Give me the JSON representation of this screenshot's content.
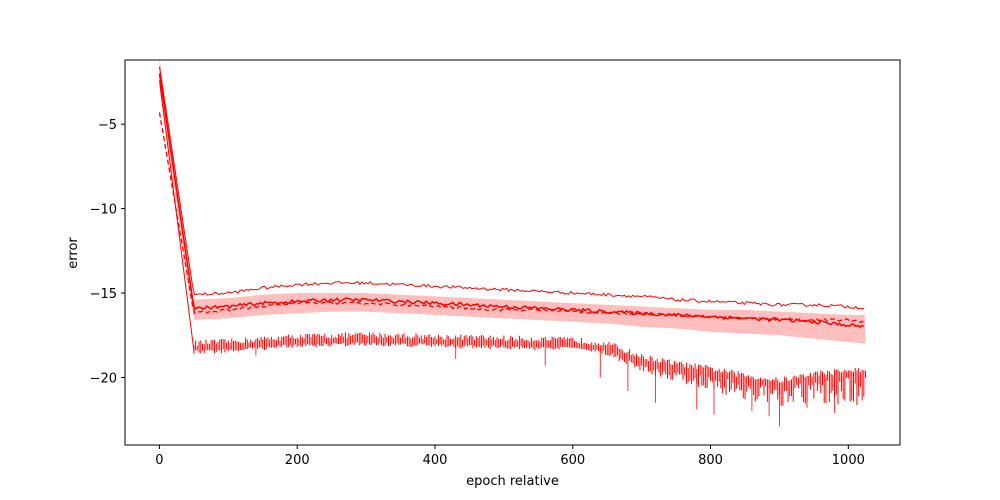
{
  "chart_data": {
    "type": "line",
    "title": "",
    "xlabel": "epoch relative",
    "ylabel": "error",
    "xlim": [
      -50,
      1075
    ],
    "ylim": [
      -24,
      -1.2
    ],
    "xticks": [
      0,
      200,
      400,
      600,
      800,
      1000
    ],
    "yticks": [
      -5,
      -10,
      -15,
      -20
    ],
    "xtick_labels": [
      "0",
      "200",
      "400",
      "600",
      "800",
      "1000"
    ],
    "ytick_labels": [
      "−5",
      "−10",
      "−15",
      "−20"
    ],
    "grid": false,
    "legend": "none",
    "colors": {
      "line": "#ff0000",
      "band": "#ffb3b3"
    },
    "series": [
      {
        "role": "mean",
        "style": "solid",
        "x": [
          0,
          50,
          100,
          150,
          200,
          250,
          300,
          350,
          400,
          450,
          500,
          550,
          600,
          650,
          700,
          750,
          800,
          850,
          900,
          950,
          1000,
          1025
        ],
        "y": [
          -2.0,
          -15.9,
          -15.8,
          -15.6,
          -15.5,
          -15.4,
          -15.4,
          -15.5,
          -15.6,
          -15.7,
          -15.8,
          -15.9,
          -16.0,
          -16.1,
          -16.2,
          -16.3,
          -16.4,
          -16.5,
          -16.6,
          -16.7,
          -16.9,
          -17.0
        ]
      },
      {
        "role": "median",
        "style": "dashed",
        "x": [
          0,
          50,
          100,
          150,
          200,
          250,
          300,
          350,
          400,
          450,
          500,
          550,
          600,
          650,
          700,
          750,
          800,
          850,
          900,
          950,
          1000,
          1025
        ],
        "y": [
          -4.3,
          -16.2,
          -16.0,
          -15.8,
          -15.6,
          -15.6,
          -15.6,
          -15.7,
          -15.8,
          -15.9,
          -16.0,
          -16.0,
          -16.1,
          -16.2,
          -16.2,
          -16.3,
          -16.4,
          -16.5,
          -16.5,
          -16.6,
          -16.6,
          -16.7
        ]
      },
      {
        "role": "max",
        "style": "solid",
        "x": [
          0,
          50,
          100,
          150,
          200,
          250,
          300,
          350,
          400,
          450,
          500,
          550,
          600,
          650,
          700,
          750,
          800,
          850,
          900,
          950,
          1000,
          1025
        ],
        "y": [
          -1.6,
          -15.1,
          -15.0,
          -14.7,
          -14.5,
          -14.4,
          -14.4,
          -14.5,
          -14.6,
          -14.7,
          -14.8,
          -14.9,
          -15.0,
          -15.1,
          -15.2,
          -15.4,
          -15.5,
          -15.6,
          -15.7,
          -15.7,
          -15.8,
          -15.9
        ]
      },
      {
        "role": "band_upper",
        "style": "fill",
        "x": [
          0,
          50,
          100,
          150,
          200,
          250,
          300,
          350,
          400,
          450,
          500,
          550,
          600,
          650,
          700,
          750,
          800,
          850,
          900,
          950,
          1000,
          1025
        ],
        "y": [
          -1.0,
          -15.4,
          -15.3,
          -15.1,
          -15.0,
          -15.0,
          -15.0,
          -15.1,
          -15.2,
          -15.3,
          -15.4,
          -15.5,
          -15.6,
          -15.7,
          -15.8,
          -15.9,
          -16.0,
          -16.0,
          -16.1,
          -16.2,
          -16.3,
          -16.3
        ]
      },
      {
        "role": "band_lower",
        "style": "fill",
        "x": [
          0,
          50,
          100,
          150,
          200,
          250,
          300,
          350,
          400,
          450,
          500,
          550,
          600,
          650,
          700,
          750,
          800,
          850,
          900,
          950,
          1000,
          1025
        ],
        "y": [
          -2.9,
          -16.6,
          -16.5,
          -16.3,
          -16.2,
          -16.1,
          -16.1,
          -16.2,
          -16.3,
          -16.4,
          -16.5,
          -16.6,
          -16.7,
          -16.8,
          -17.0,
          -17.1,
          -17.3,
          -17.4,
          -17.5,
          -17.7,
          -17.9,
          -18.0
        ]
      },
      {
        "role": "min",
        "style": "spikes",
        "x": [
          0,
          50,
          100,
          200,
          300,
          400,
          500,
          600,
          650,
          700,
          750,
          800,
          850,
          900,
          950,
          1000
        ],
        "y": [
          -2.4,
          -18.4,
          -18.3,
          -18.0,
          -17.9,
          -18.0,
          -18.1,
          -18.2,
          -18.4,
          -19.2,
          -19.6,
          -19.9,
          -20.3,
          -20.6,
          -20.2,
          -20.0
        ],
        "spike_extremes": [
          {
            "x": 140,
            "y": -18.7
          },
          {
            "x": 430,
            "y": -18.9
          },
          {
            "x": 560,
            "y": -19.3
          },
          {
            "x": 640,
            "y": -20.0
          },
          {
            "x": 680,
            "y": -20.8
          },
          {
            "x": 720,
            "y": -21.5
          },
          {
            "x": 780,
            "y": -21.9
          },
          {
            "x": 805,
            "y": -22.2
          },
          {
            "x": 860,
            "y": -22.0
          },
          {
            "x": 885,
            "y": -22.3
          },
          {
            "x": 900,
            "y": -22.9
          },
          {
            "x": 940,
            "y": -21.8
          },
          {
            "x": 980,
            "y": -22.1
          },
          {
            "x": 1015,
            "y": -20.5
          }
        ]
      }
    ]
  }
}
